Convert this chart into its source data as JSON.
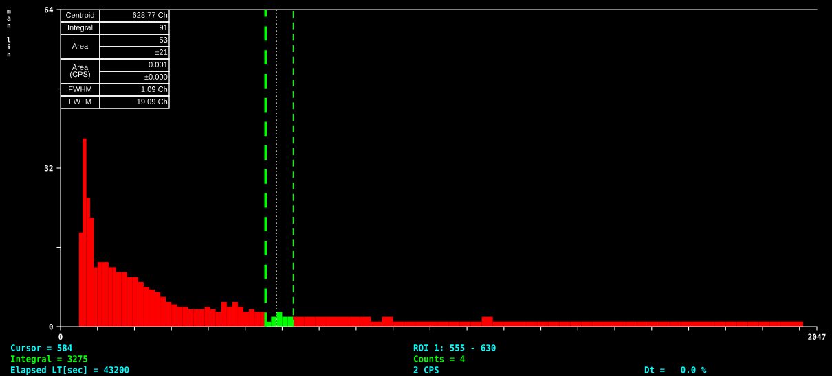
{
  "chart_data": {
    "type": "histogram",
    "ylabel": "man lin",
    "bins": [
      50,
      60,
      70,
      80,
      90,
      100,
      110,
      120,
      130,
      140,
      150,
      165,
      180,
      195,
      210,
      225,
      240,
      255,
      270,
      285,
      300,
      315,
      330,
      345,
      360,
      375,
      390,
      405,
      420,
      435,
      450,
      465,
      480,
      495,
      510,
      525,
      540,
      555,
      570,
      585,
      600,
      615,
      630,
      660,
      690,
      720,
      750,
      780,
      810,
      840,
      870,
      900,
      930,
      960,
      990,
      1020,
      1050,
      1080,
      1110,
      1140,
      1170,
      1200,
      1230,
      1260,
      1290,
      1320,
      1350,
      1380,
      1410,
      1440,
      1470,
      1500,
      1530,
      1560,
      1590,
      1620,
      1650,
      1680,
      1710,
      1740,
      1770,
      1800,
      1830,
      1860,
      1890,
      1920,
      1950,
      1980,
      2010
    ],
    "values": [
      19,
      38,
      26,
      22,
      12,
      13,
      13,
      13,
      12,
      12,
      11,
      11,
      10,
      10,
      9,
      8,
      7.5,
      7,
      6,
      5,
      4.5,
      4,
      4,
      3.5,
      3.5,
      3.5,
      4,
      3.5,
      3,
      5,
      4,
      5,
      4,
      3,
      3.5,
      3,
      3,
      1,
      2,
      3,
      2,
      2,
      2,
      2,
      2,
      2,
      2,
      2,
      2,
      1,
      2,
      1,
      1,
      1,
      1,
      1,
      1,
      1,
      1,
      2,
      1,
      1,
      1,
      1,
      1,
      1,
      1,
      1,
      1,
      1,
      1,
      1,
      1,
      1,
      1,
      1,
      1,
      1,
      1,
      1,
      1,
      1,
      1,
      1,
      1,
      1,
      1,
      1
    ],
    "colors": [
      "#ff0000",
      "#ff0000",
      "#ff0000",
      "#ff0000",
      "#ff0000",
      "#ff0000",
      "#ff0000",
      "#ff0000",
      "#ff0000",
      "#ff0000",
      "#ff0000",
      "#ff0000",
      "#ff0000",
      "#ff0000",
      "#ff0000",
      "#ff0000",
      "#ff0000",
      "#ff0000",
      "#ff0000",
      "#ff0000",
      "#ff0000",
      "#ff0000",
      "#ff0000",
      "#ff0000",
      "#ff0000",
      "#ff0000",
      "#ff0000",
      "#ff0000",
      "#ff0000",
      "#ff0000",
      "#ff0000",
      "#ff0000",
      "#ff0000",
      "#ff0000",
      "#ff0000",
      "#ff0000",
      "#ff0000",
      "#00ff00",
      "#00ff00",
      "#00ff00",
      "#00ff00",
      "#00ff00",
      "#ff0000",
      "#ff0000",
      "#ff0000",
      "#ff0000",
      "#ff0000",
      "#ff0000",
      "#ff0000",
      "#ff0000",
      "#ff0000",
      "#ff0000",
      "#ff0000",
      "#ff0000",
      "#ff0000",
      "#ff0000",
      "#ff0000",
      "#ff0000",
      "#ff0000",
      "#ff0000",
      "#ff0000",
      "#ff0000",
      "#ff0000",
      "#ff0000",
      "#ff0000",
      "#ff0000",
      "#ff0000",
      "#ff0000",
      "#ff0000",
      "#ff0000",
      "#ff0000",
      "#ff0000",
      "#ff0000",
      "#ff0000",
      "#ff0000",
      "#ff0000",
      "#ff0000",
      "#ff0000",
      "#ff0000",
      "#ff0000",
      "#ff0000",
      "#ff0000",
      "#ff0000",
      "#ff0000",
      "#ff0000",
      "#ff0000",
      "#ff0000",
      "#ff0000"
    ],
    "xlim": [
      0,
      2047
    ],
    "xticks": [
      0,
      {
        "value": 100,
        "label": null
      },
      {
        "value": 200,
        "label": null
      },
      {
        "value": 300,
        "label": null
      },
      {
        "value": 400,
        "label": null
      },
      {
        "value": 500,
        "label": null
      },
      {
        "value": 600,
        "label": null
      },
      {
        "value": 700,
        "label": null
      },
      {
        "value": 800,
        "label": null
      },
      {
        "value": 900,
        "label": null
      },
      {
        "value": 1000,
        "label": null
      },
      {
        "value": 1100,
        "label": null
      },
      {
        "value": 1200,
        "label": null
      },
      {
        "value": 1300,
        "label": null
      },
      {
        "value": 1400,
        "label": null
      },
      {
        "value": 1500,
        "label": null
      },
      {
        "value": 1600,
        "label": null
      },
      {
        "value": 1700,
        "label": null
      },
      {
        "value": 1800,
        "label": null
      },
      {
        "value": 1900,
        "label": null
      },
      {
        "value": 2000,
        "label": null
      },
      2047
    ],
    "ylim": [
      0,
      64
    ],
    "yticks": [
      0,
      {
        "value": 16,
        "label": null
      },
      32,
      {
        "value": 48,
        "label": null
      },
      64
    ],
    "ref_lines": [
      {
        "axis": "x",
        "value": 555,
        "color": "#00ff00",
        "line_style": "dashed"
      },
      {
        "axis": "x",
        "value": 584,
        "color": "#ffffff",
        "line_style": "dotted"
      },
      {
        "axis": "x",
        "value": 630,
        "color": "#00ff00",
        "line_style": "dashed"
      }
    ],
    "annotations": [
      "Centroid",
      "628.77 Ch",
      "Integral",
      "91",
      "Area",
      "53",
      "±21",
      "Area\n(CPS)",
      "0.001",
      "±0.000",
      "FWHM",
      "1.09 Ch",
      "FWTM",
      "19.09 Ch",
      "Cursor = 584",
      "Integral = 3275",
      "Elapsed LT[sec] = 43200",
      "ROI 1: 555 - 630",
      "Counts = 4",
      "2 CPS",
      "Dt =   0.0 %"
    ],
    "grid": false
  }
}
